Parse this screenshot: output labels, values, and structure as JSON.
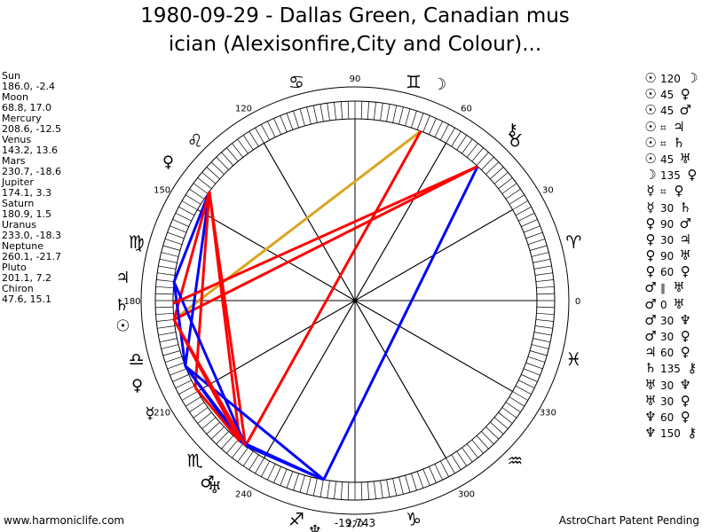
{
  "title_line1": "1980-09-29 - Dallas Green, Canadian mus",
  "title_line2": "ician (Alexisonfire,City and Colour)...",
  "footer_left": "www.harmoniclife.com",
  "footer_right": "AstroChart Patent Pending",
  "bottom_readout": "-19,743",
  "positions": [
    {
      "name": "Sun",
      "value": "186.0, -2.4"
    },
    {
      "name": "Moon",
      "value": "68.8, 17.0"
    },
    {
      "name": "Mercury",
      "value": "208.6, -12.5"
    },
    {
      "name": "Venus",
      "value": "143.2, 13.6"
    },
    {
      "name": "Mars",
      "value": "230.7, -18.6"
    },
    {
      "name": "Jupiter",
      "value": "174.1, 3.3"
    },
    {
      "name": "Saturn",
      "value": "180.9, 1.5"
    },
    {
      "name": "Uranus",
      "value": "233.0, -18.3"
    },
    {
      "name": "Neptune",
      "value": "260.1, -21.7"
    },
    {
      "name": "Pluto",
      "value": "201.1, 7.2"
    },
    {
      "name": "Chiron",
      "value": "47.6, 15.1"
    }
  ],
  "aspects": [
    {
      "p1": "☉",
      "angle": "120",
      "p2": "☽"
    },
    {
      "p1": "☉",
      "angle": "45",
      "p2": "♀"
    },
    {
      "p1": "☉",
      "angle": "45",
      "p2": "♂"
    },
    {
      "p1": "☉",
      "angle": "⌗",
      "p2": "♃"
    },
    {
      "p1": "☉",
      "angle": "⌗",
      "p2": "♄"
    },
    {
      "p1": "☉",
      "angle": "45",
      "p2": "♅"
    },
    {
      "p1": "☽",
      "angle": "135",
      "p2": "♀"
    },
    {
      "p1": "☿",
      "angle": "⌗",
      "p2": "♀"
    },
    {
      "p1": "☿",
      "angle": "30",
      "p2": "♄"
    },
    {
      "p1": "♀",
      "angle": "90",
      "p2": "♂"
    },
    {
      "p1": "♀",
      "angle": "30",
      "p2": "♃"
    },
    {
      "p1": "♀",
      "angle": "90",
      "p2": "♅"
    },
    {
      "p1": "♀",
      "angle": "60",
      "p2": "♀"
    },
    {
      "p1": "♂",
      "angle": "∥",
      "p2": "♅"
    },
    {
      "p1": "♂",
      "angle": "0",
      "p2": "♅"
    },
    {
      "p1": "♂",
      "angle": "30",
      "p2": "♆"
    },
    {
      "p1": "♂",
      "angle": "30",
      "p2": "♀"
    },
    {
      "p1": "♃",
      "angle": "60",
      "p2": "♀"
    },
    {
      "p1": "♄",
      "angle": "135",
      "p2": "⚷"
    },
    {
      "p1": "♅",
      "angle": "30",
      "p2": "♆"
    },
    {
      "p1": "♅",
      "angle": "30",
      "p2": "♀"
    },
    {
      "p1": "♆",
      "angle": "60",
      "p2": "♀"
    },
    {
      "p1": "♆",
      "angle": "150",
      "p2": "⚷"
    }
  ],
  "colors": {
    "trine": "#daa520",
    "square": "#ff0000",
    "opposition": "#ff0000",
    "sextile": "#0000ff",
    "tick": "#000000"
  },
  "chart_data": {
    "type": "astrological wheel",
    "degree_labels": [
      "0",
      "30",
      "60",
      "90",
      "120",
      "150",
      "180",
      "210",
      "240",
      "270",
      "300",
      "330"
    ],
    "zodiac_signs": [
      "♈",
      "♉",
      "♊",
      "♋",
      "♌",
      "♍",
      "♎",
      "♏",
      "♐",
      "♑",
      "♒",
      "♓"
    ],
    "planets": [
      {
        "symbol": "☉",
        "longitude": 186.0
      },
      {
        "symbol": "☽",
        "longitude": 68.8
      },
      {
        "symbol": "☿",
        "longitude": 208.6
      },
      {
        "symbol": "♀",
        "longitude": 143.2
      },
      {
        "symbol": "♂",
        "longitude": 230.7
      },
      {
        "symbol": "♃",
        "longitude": 174.1
      },
      {
        "symbol": "♄",
        "longitude": 180.9
      },
      {
        "symbol": "♅",
        "longitude": 233.0
      },
      {
        "symbol": "♆",
        "longitude": 260.1
      },
      {
        "symbol": "♀",
        "longitude": 201.1
      },
      {
        "symbol": "⚷",
        "longitude": 47.6
      }
    ],
    "aspect_lines": [
      {
        "from": 186.0,
        "to": 68.8,
        "color": "#daa520"
      },
      {
        "from": 186.0,
        "to": 47.6,
        "color": "#ff0000"
      },
      {
        "from": 68.8,
        "to": 233.0,
        "color": "#ff0000"
      },
      {
        "from": 143.2,
        "to": 230.7,
        "color": "#ff0000"
      },
      {
        "from": 143.2,
        "to": 233.0,
        "color": "#ff0000"
      },
      {
        "from": 143.2,
        "to": 201.1,
        "color": "#0000ff"
      },
      {
        "from": 143.2,
        "to": 174.1,
        "color": "#0000ff"
      },
      {
        "from": 143.2,
        "to": 208.6,
        "color": "#ff0000"
      },
      {
        "from": 143.2,
        "to": 186.0,
        "color": "#ff0000"
      },
      {
        "from": 230.7,
        "to": 260.1,
        "color": "#0000ff"
      },
      {
        "from": 230.7,
        "to": 201.1,
        "color": "#0000ff"
      },
      {
        "from": 230.7,
        "to": 208.6,
        "color": "#ff0000"
      },
      {
        "from": 233.0,
        "to": 260.1,
        "color": "#0000ff"
      },
      {
        "from": 233.0,
        "to": 201.1,
        "color": "#0000ff"
      },
      {
        "from": 174.1,
        "to": 233.0,
        "color": "#0000ff"
      },
      {
        "from": 174.1,
        "to": 201.1,
        "color": "#0000ff"
      },
      {
        "from": 260.1,
        "to": 201.1,
        "color": "#0000ff"
      },
      {
        "from": 260.1,
        "to": 47.6,
        "color": "#0000ff"
      },
      {
        "from": 180.9,
        "to": 47.6,
        "color": "#ff0000"
      },
      {
        "from": 186.0,
        "to": 230.7,
        "color": "#ff0000"
      },
      {
        "from": 186.0,
        "to": 233.0,
        "color": "#ff0000"
      }
    ]
  }
}
